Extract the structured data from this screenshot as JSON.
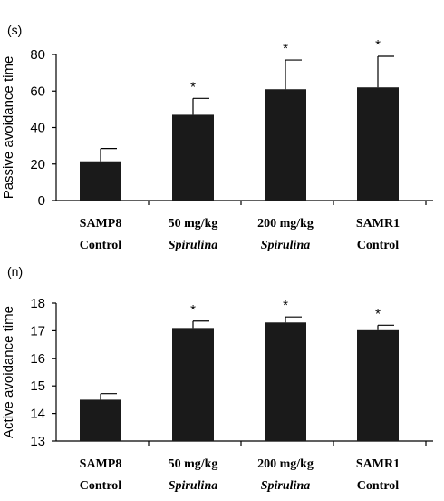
{
  "chart_data": [
    {
      "type": "bar",
      "unit_label": "(s)",
      "ylabel": "Passive avoidance time",
      "ylim": [
        0,
        80
      ],
      "yticks": [
        "0",
        "20",
        "40",
        "60",
        "80"
      ],
      "categories": [
        {
          "line1": "SAMP8",
          "line2": "Control",
          "italic": false
        },
        {
          "line1": "50 mg/kg",
          "line2": "Spirulina",
          "italic": true
        },
        {
          "line1": "200 mg/kg",
          "line2": "Spirulina",
          "italic": true
        },
        {
          "line1": "SAMR1",
          "line2": "Control",
          "italic": false
        }
      ],
      "values": [
        21.5,
        47,
        61,
        62
      ],
      "errors": [
        7,
        9,
        16,
        17
      ],
      "significance": [
        "",
        "*",
        "*",
        "*"
      ]
    },
    {
      "type": "bar",
      "unit_label": "(n)",
      "ylabel": "Active avoidance time",
      "ylim": [
        13,
        18
      ],
      "yticks": [
        "13",
        "14",
        "15",
        "16",
        "17",
        "18"
      ],
      "categories": [
        {
          "line1": "SAMP8",
          "line2": "Control",
          "italic": false
        },
        {
          "line1": "50 mg/kg",
          "line2": "Spirulina",
          "italic": true
        },
        {
          "line1": "200 mg/kg",
          "line2": "Spirulina",
          "italic": true
        },
        {
          "line1": "SAMR1",
          "line2": "Control",
          "italic": false
        }
      ],
      "values": [
        14.5,
        17.1,
        17.3,
        17.02
      ],
      "errors": [
        0.22,
        0.25,
        0.2,
        0.18
      ],
      "significance": [
        "",
        "*",
        "*",
        "*"
      ]
    }
  ]
}
